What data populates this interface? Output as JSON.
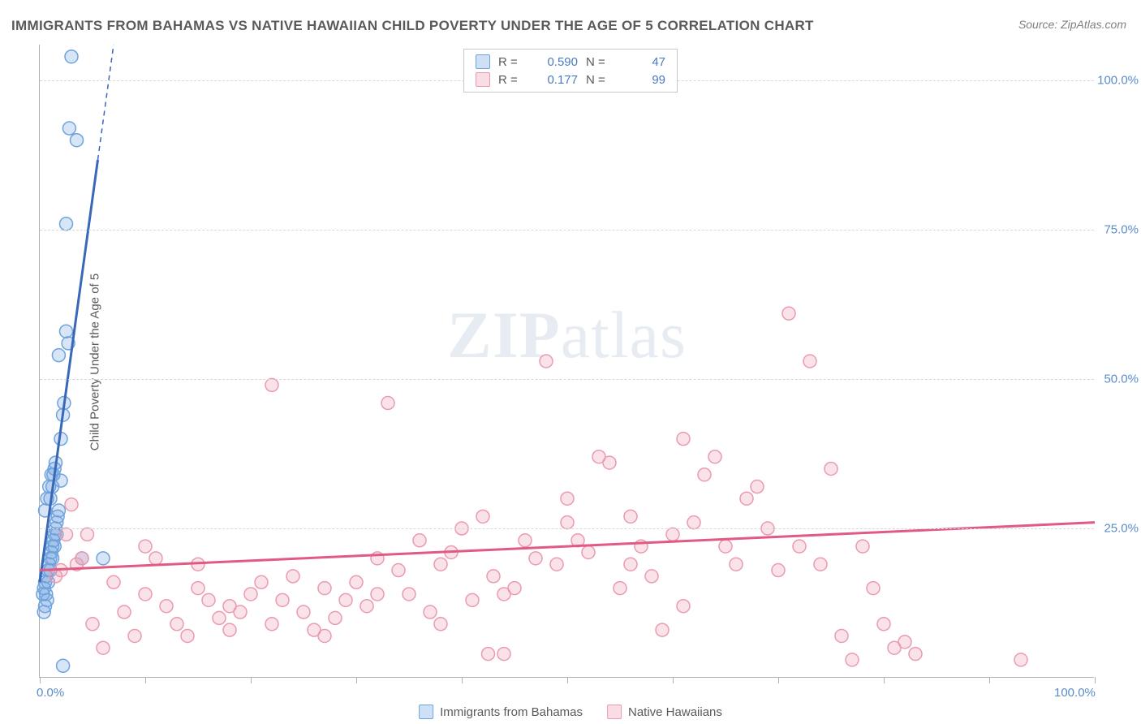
{
  "title": "IMMIGRANTS FROM BAHAMAS VS NATIVE HAWAIIAN CHILD POVERTY UNDER THE AGE OF 5 CORRELATION CHART",
  "source": "Source: ZipAtlas.com",
  "ylabel": "Child Poverty Under the Age of 5",
  "watermark_a": "ZIP",
  "watermark_b": "atlas",
  "chart": {
    "type": "scatter",
    "background_color": "#ffffff",
    "grid_color": "#d8d8d8",
    "axis_color": "#b0b0b0",
    "tick_label_color": "#5b8bc9",
    "tick_fontsize": 15,
    "xlim": [
      0,
      100
    ],
    "ylim": [
      0,
      106
    ],
    "xticks": [
      0,
      10,
      20,
      30,
      40,
      50,
      60,
      70,
      80,
      90,
      100
    ],
    "xtick_labels": {
      "0": "0.0%",
      "100": "100.0%"
    },
    "yticks": [
      25,
      50,
      75,
      100
    ],
    "ytick_labels": {
      "25": "25.0%",
      "50": "50.0%",
      "75": "75.0%",
      "100": "100.0%"
    },
    "marker_radius": 8,
    "marker_stroke_width": 1.5,
    "marker_fill_opacity": 0.28,
    "trend_line_width": 3,
    "series": [
      {
        "name": "Immigrants from Bahamas",
        "color": "#6fa3dd",
        "line_color": "#3968b8",
        "R": "0.590",
        "N": "47",
        "trend": {
          "x1": 0,
          "y1": 16,
          "x2": 7,
          "y2": 106,
          "dash_after_x": 5.5
        },
        "points": [
          [
            0.3,
            14
          ],
          [
            0.4,
            15
          ],
          [
            0.5,
            16
          ],
          [
            0.6,
            17
          ],
          [
            0.8,
            18
          ],
          [
            0.9,
            19
          ],
          [
            1.0,
            20
          ],
          [
            1.1,
            21
          ],
          [
            1.2,
            22
          ],
          [
            1.3,
            23
          ],
          [
            1.4,
            24
          ],
          [
            1.5,
            25
          ],
          [
            1.6,
            26
          ],
          [
            1.7,
            27
          ],
          [
            1.8,
            28
          ],
          [
            0.5,
            12
          ],
          [
            0.7,
            13
          ],
          [
            1.0,
            30
          ],
          [
            1.2,
            32
          ],
          [
            1.3,
            34
          ],
          [
            1.4,
            35
          ],
          [
            1.5,
            36
          ],
          [
            2.0,
            40
          ],
          [
            2.2,
            44
          ],
          [
            2.3,
            46
          ],
          [
            2.5,
            58
          ],
          [
            2.7,
            56
          ],
          [
            1.8,
            54
          ],
          [
            2.0,
            33
          ],
          [
            0.4,
            11
          ],
          [
            0.6,
            14
          ],
          [
            0.8,
            16
          ],
          [
            1.0,
            18
          ],
          [
            1.2,
            20
          ],
          [
            1.4,
            22
          ],
          [
            1.6,
            24
          ],
          [
            4.0,
            20
          ],
          [
            6.0,
            20
          ],
          [
            2.2,
            2
          ],
          [
            3.0,
            104
          ],
          [
            2.8,
            92
          ],
          [
            3.5,
            90
          ],
          [
            2.5,
            76
          ],
          [
            0.5,
            28
          ],
          [
            0.7,
            30
          ],
          [
            0.9,
            32
          ],
          [
            1.1,
            34
          ]
        ]
      },
      {
        "name": "Native Hawaiians",
        "color": "#eb9ab0",
        "line_color": "#e05a84",
        "R": "0.177",
        "N": "99",
        "trend": {
          "x1": 0,
          "y1": 18,
          "x2": 100,
          "y2": 26
        },
        "points": [
          [
            1.5,
            17
          ],
          [
            2.0,
            18
          ],
          [
            3.0,
            29
          ],
          [
            3.5,
            19
          ],
          [
            4.0,
            20
          ],
          [
            5.0,
            9
          ],
          [
            6.0,
            5
          ],
          [
            7.0,
            16
          ],
          [
            8.0,
            11
          ],
          [
            9.0,
            7
          ],
          [
            10.0,
            14
          ],
          [
            11.0,
            20
          ],
          [
            12.0,
            12
          ],
          [
            13.0,
            9
          ],
          [
            14.0,
            7
          ],
          [
            15.0,
            15
          ],
          [
            16.0,
            13
          ],
          [
            17.0,
            10
          ],
          [
            18.0,
            8
          ],
          [
            19.0,
            11
          ],
          [
            20.0,
            14
          ],
          [
            21.0,
            16
          ],
          [
            22.0,
            9
          ],
          [
            23.0,
            13
          ],
          [
            24.0,
            17
          ],
          [
            25.0,
            11
          ],
          [
            26.0,
            8
          ],
          [
            27.0,
            15
          ],
          [
            28.0,
            10
          ],
          [
            29.0,
            13
          ],
          [
            30.0,
            16
          ],
          [
            31.0,
            12
          ],
          [
            32.0,
            20
          ],
          [
            33.0,
            46
          ],
          [
            34.0,
            18
          ],
          [
            35.0,
            14
          ],
          [
            36.0,
            23
          ],
          [
            37.0,
            11
          ],
          [
            38.0,
            19
          ],
          [
            39.0,
            21
          ],
          [
            40.0,
            25
          ],
          [
            41.0,
            13
          ],
          [
            42.0,
            27
          ],
          [
            43.0,
            17
          ],
          [
            42.5,
            4
          ],
          [
            44.0,
            4
          ],
          [
            45.0,
            15
          ],
          [
            46.0,
            23
          ],
          [
            47.0,
            20
          ],
          [
            48.0,
            53
          ],
          [
            49.0,
            19
          ],
          [
            50.0,
            26
          ],
          [
            51.0,
            23
          ],
          [
            52.0,
            21
          ],
          [
            53.0,
            37
          ],
          [
            54.0,
            36
          ],
          [
            55.0,
            15
          ],
          [
            56.0,
            19
          ],
          [
            57.0,
            22
          ],
          [
            58.0,
            17
          ],
          [
            59.0,
            8
          ],
          [
            60.0,
            24
          ],
          [
            61.0,
            40
          ],
          [
            62.0,
            26
          ],
          [
            63.0,
            34
          ],
          [
            64.0,
            37
          ],
          [
            65.0,
            22
          ],
          [
            66.0,
            19
          ],
          [
            67.0,
            30
          ],
          [
            68.0,
            32
          ],
          [
            69.0,
            25
          ],
          [
            70.0,
            18
          ],
          [
            71.0,
            61
          ],
          [
            72.0,
            22
          ],
          [
            73.0,
            53
          ],
          [
            74.0,
            19
          ],
          [
            75.0,
            35
          ],
          [
            76.0,
            7
          ],
          [
            77.0,
            3
          ],
          [
            78.0,
            22
          ],
          [
            79.0,
            15
          ],
          [
            80.0,
            9
          ],
          [
            81.0,
            5
          ],
          [
            82.0,
            6
          ],
          [
            83.0,
            4
          ],
          [
            93.0,
            3
          ],
          [
            22.0,
            49
          ],
          [
            10.0,
            22
          ],
          [
            15.0,
            19
          ],
          [
            18.0,
            12
          ],
          [
            27.0,
            7
          ],
          [
            32.0,
            14
          ],
          [
            38.0,
            9
          ],
          [
            44.0,
            14
          ],
          [
            50.0,
            30
          ],
          [
            56.0,
            27
          ],
          [
            61.0,
            12
          ],
          [
            2.5,
            24
          ],
          [
            4.5,
            24
          ]
        ]
      }
    ]
  },
  "legend_top": {
    "r_label": "R =",
    "n_label": "N ="
  },
  "legend_bottom": {
    "items": [
      "Immigrants from Bahamas",
      "Native Hawaiians"
    ]
  }
}
